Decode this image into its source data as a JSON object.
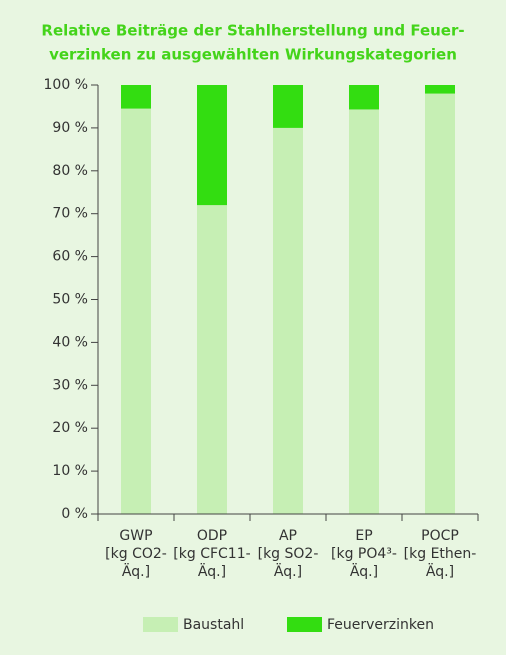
{
  "chart_data": {
    "type": "stacked-bar",
    "title": [
      "Relative Beiträge der Stahlherstellung und Feuer-",
      "verzinken zu ausgewählten Wirkungskategorien"
    ],
    "categories": [
      [
        "GWP",
        "[kg CO2-",
        "Äq.]"
      ],
      [
        "ODP",
        "[kg CFC11-",
        "Äq.]"
      ],
      [
        "AP",
        "[kg SO2-",
        "Äq.]"
      ],
      [
        "EP",
        "[kg PO4³-",
        "Äq.]"
      ],
      [
        "POCP",
        "[kg Ethen-",
        "Äq.]"
      ]
    ],
    "series": [
      {
        "name": "Baustahl",
        "color": "#c6efb4",
        "values": [
          94.5,
          72,
          90,
          94.3,
          98
        ]
      },
      {
        "name": "Feuerverzinken",
        "color": "#33dd11",
        "values": [
          5.5,
          28,
          10,
          5.7,
          2
        ]
      }
    ],
    "ylim": [
      0,
      100
    ],
    "yticks": [
      {
        "value": 0,
        "label": "0 %"
      },
      {
        "value": 10,
        "label": "10 %"
      },
      {
        "value": 20,
        "label": "20 %"
      },
      {
        "value": 30,
        "label": "30 %"
      },
      {
        "value": 40,
        "label": "40 %"
      },
      {
        "value": 50,
        "label": "50 %"
      },
      {
        "value": 60,
        "label": "60 %"
      },
      {
        "value": 70,
        "label": "70 %"
      },
      {
        "value": 80,
        "label": "80 %"
      },
      {
        "value": 90,
        "label": "90 %"
      },
      {
        "value": 100,
        "label": "100 %"
      }
    ],
    "legend": "bottom"
  }
}
